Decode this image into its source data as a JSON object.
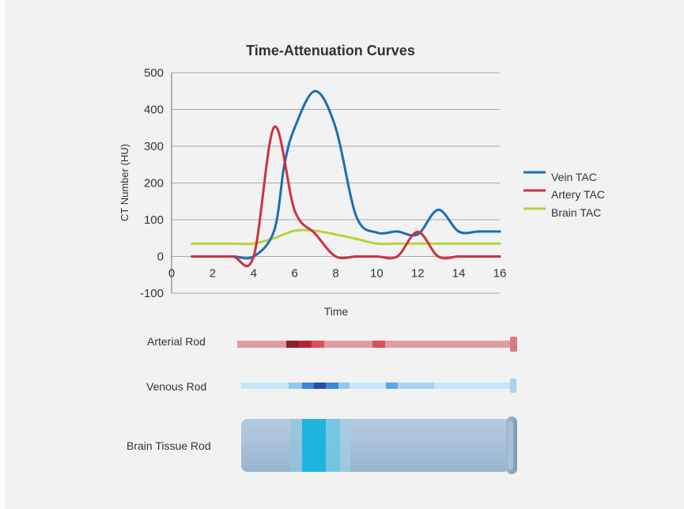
{
  "chart_data": {
    "type": "line",
    "title": "Time-Attenuation Curves",
    "xlabel": "Time",
    "ylabel": "CT Number (HU)",
    "xlim": [
      0,
      16
    ],
    "ylim": [
      -100,
      500
    ],
    "x_ticks": [
      "0",
      "2",
      "4",
      "6",
      "8",
      "10",
      "12",
      "14",
      "16"
    ],
    "y_ticks": [
      "500",
      "400",
      "300",
      "200",
      "100",
      "0",
      "-100"
    ],
    "grid": true,
    "legend_position": "right",
    "series": [
      {
        "name": "Vein TAC",
        "color": "#1a6fb2",
        "x": [
          1,
          2,
          3,
          4,
          5,
          5.5,
          6,
          7,
          8,
          9,
          10,
          11,
          12,
          13,
          14,
          15,
          16
        ],
        "y": [
          0,
          0,
          0,
          0,
          70,
          250,
          350,
          450,
          350,
          110,
          65,
          68,
          60,
          127,
          68,
          68,
          68
        ]
      },
      {
        "name": "Artery TAC",
        "color": "#cf3040",
        "x": [
          1,
          2,
          3,
          4,
          5,
          6,
          7,
          8,
          9,
          10,
          11,
          12,
          13,
          14,
          15,
          16
        ],
        "y": [
          0,
          0,
          0,
          0,
          352,
          125,
          62,
          0,
          0,
          0,
          0,
          67,
          0,
          0,
          0,
          0
        ]
      },
      {
        "name": "Brain TAC",
        "color": "#b5d43a",
        "x": [
          1,
          2,
          3,
          4,
          5,
          6,
          7,
          8,
          9,
          10,
          11,
          12,
          13,
          14,
          15,
          16
        ],
        "y": [
          35,
          35,
          35,
          35,
          50,
          70,
          70,
          60,
          48,
          35,
          35,
          35,
          35,
          35,
          35,
          35
        ]
      }
    ]
  },
  "rods": {
    "arterial_label": "Arterial Rod",
    "venous_label": "Venous Rod",
    "brain_label": "Brain Tissue  Rod"
  }
}
